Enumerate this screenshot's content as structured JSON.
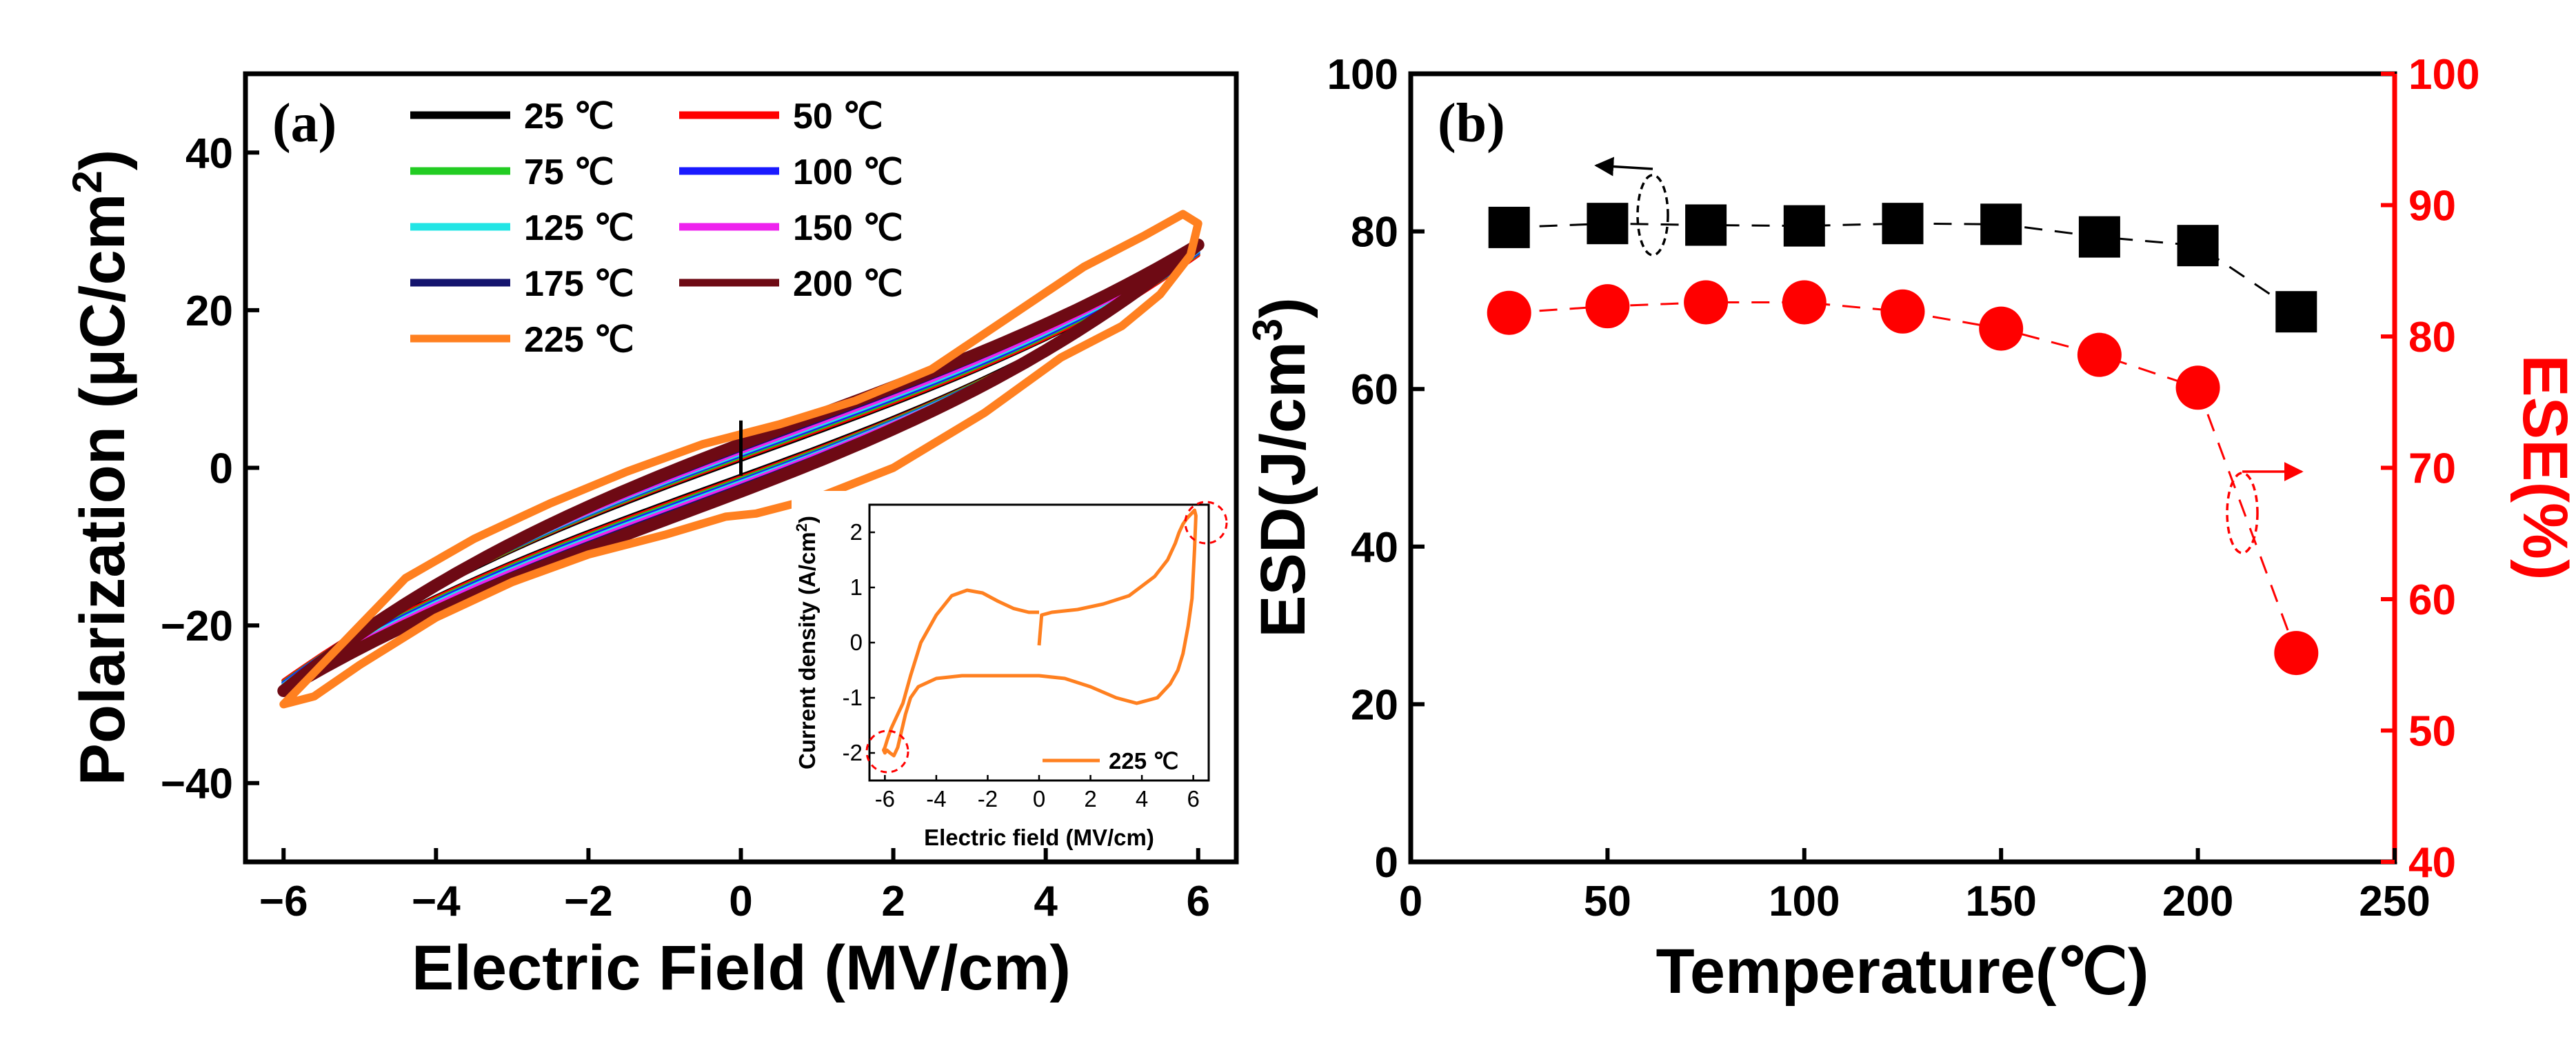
{
  "chart_data": [
    {
      "panel": "(a)",
      "type": "line",
      "xlabel": "Electric Field (MV/cm)",
      "ylabel": "Polarization (μC/cm²)",
      "xlim": [
        -6.5,
        6.5
      ],
      "ylim": [
        -50,
        50
      ],
      "xticks": [
        -6,
        -4,
        -2,
        0,
        2,
        4,
        6
      ],
      "yticks": [
        -40,
        -20,
        0,
        20,
        40
      ],
      "xtick_labels": [
        "−6",
        "−4",
        "−2",
        "0",
        "2",
        "4",
        "6"
      ],
      "ytick_labels": [
        "−40",
        "−20",
        "0",
        "20",
        "40"
      ],
      "legend_position": "top-left",
      "series": [
        {
          "name": "25 ℃",
          "color": "#000000",
          "pmax": 27,
          "remnant": 1.0
        },
        {
          "name": "50 ℃",
          "color": "#ff0000",
          "pmax": 27,
          "remnant": 1.2
        },
        {
          "name": "75 ℃",
          "color": "#22cc22",
          "pmax": 27.2,
          "remnant": 1.4
        },
        {
          "name": "100 ℃",
          "color": "#1a1aff",
          "pmax": 27.3,
          "remnant": 1.6
        },
        {
          "name": "125 ℃",
          "color": "#22e5e5",
          "pmax": 27.5,
          "remnant": 1.8
        },
        {
          "name": "150 ℃",
          "color": "#ee22ee",
          "pmax": 27.7,
          "remnant": 2.0
        },
        {
          "name": "175 ℃",
          "color": "#14146e",
          "pmax": 28,
          "remnant": 2.3
        },
        {
          "name": "200 ℃",
          "color": "#6e0a14",
          "pmax": 28.3,
          "remnant": 3.0
        },
        {
          "name": "225 ℃",
          "color": "#ff8020",
          "pmax": 32,
          "remnant": 5.0
        }
      ],
      "inset": {
        "type": "line",
        "xlabel": "Electric field (MV/cm)",
        "ylabel": "Current density (A/cm²)",
        "xlim": [
          -6.6,
          6.6
        ],
        "ylim": [
          -2.5,
          2.5
        ],
        "xticks": [
          -6,
          -4,
          -2,
          0,
          2,
          4,
          6
        ],
        "yticks": [
          -2,
          -1,
          0,
          1,
          2
        ],
        "xtick_labels": [
          "-6",
          "-4",
          "-2",
          "0",
          "2",
          "4",
          "6"
        ],
        "ytick_labels": [
          "-2",
          "-1",
          "0",
          "1",
          "2"
        ],
        "legend": "225 ℃",
        "color": "#ff8020",
        "x": [
          0,
          0.1,
          0.5,
          1.5,
          2.5,
          3.5,
          4.5,
          5.0,
          5.3,
          5.45,
          5.6,
          5.75,
          5.85,
          5.95,
          6.05,
          6.1,
          6.05,
          5.95,
          5.8,
          5.6,
          5.4,
          5.1,
          4.6,
          3.8,
          3.0,
          2.0,
          1.0,
          0,
          -1.0,
          -2.0,
          -3.0,
          -4.0,
          -4.7,
          -5.0,
          -5.2,
          -5.35,
          -5.5,
          -5.65,
          -5.8,
          -5.92,
          -6.0,
          -6.05,
          -6.0,
          -5.9,
          -5.75,
          -5.55,
          -5.3,
          -5.0,
          -4.6,
          -4.0,
          -3.4,
          -2.8,
          -2.2,
          -1.6,
          -1.0,
          -0.4,
          0
        ],
        "y": [
          -0.05,
          0.5,
          0.55,
          0.6,
          0.7,
          0.85,
          1.2,
          1.5,
          1.8,
          2.0,
          2.15,
          2.25,
          2.3,
          2.35,
          2.4,
          2.3,
          1.7,
          0.8,
          0.3,
          -0.2,
          -0.5,
          -0.75,
          -1.0,
          -1.1,
          -1.0,
          -0.8,
          -0.65,
          -0.6,
          -0.6,
          -0.6,
          -0.6,
          -0.65,
          -0.8,
          -1.0,
          -1.3,
          -1.6,
          -1.9,
          -2.05,
          -2.0,
          -1.95,
          -2.0,
          -1.95,
          -1.9,
          -1.75,
          -1.55,
          -1.35,
          -1.1,
          -0.6,
          0.0,
          0.5,
          0.85,
          0.95,
          0.9,
          0.75,
          0.62,
          0.55,
          0.55
        ]
      }
    },
    {
      "panel": "(b)",
      "type": "scatter-line",
      "xlabel": "Temperature(℃)",
      "ylabel_left": "ESD(J/cm³)",
      "ylabel_right": "ESE(%)",
      "xlim": [
        0,
        250
      ],
      "ylim_left": [
        0,
        100
      ],
      "ylim_right": [
        40,
        100
      ],
      "xticks": [
        0,
        50,
        100,
        150,
        200,
        250
      ],
      "yticks_left": [
        0,
        20,
        40,
        60,
        80,
        100
      ],
      "yticks_right": [
        40,
        50,
        60,
        70,
        80,
        90,
        100
      ],
      "x": [
        25,
        50,
        75,
        100,
        125,
        150,
        175,
        200,
        225
      ],
      "series": [
        {
          "name": "ESD",
          "axis": "left",
          "marker": "square",
          "color": "#000000",
          "values": [
            80.5,
            81,
            80.8,
            80.7,
            81,
            80.9,
            79.3,
            78.2,
            69.8
          ]
        },
        {
          "name": "ESE",
          "axis": "right",
          "marker": "circle",
          "color": "#ff0000",
          "values": [
            81.8,
            82.3,
            82.6,
            82.6,
            81.9,
            80.6,
            78.6,
            76.1,
            55.9
          ]
        }
      ]
    }
  ]
}
